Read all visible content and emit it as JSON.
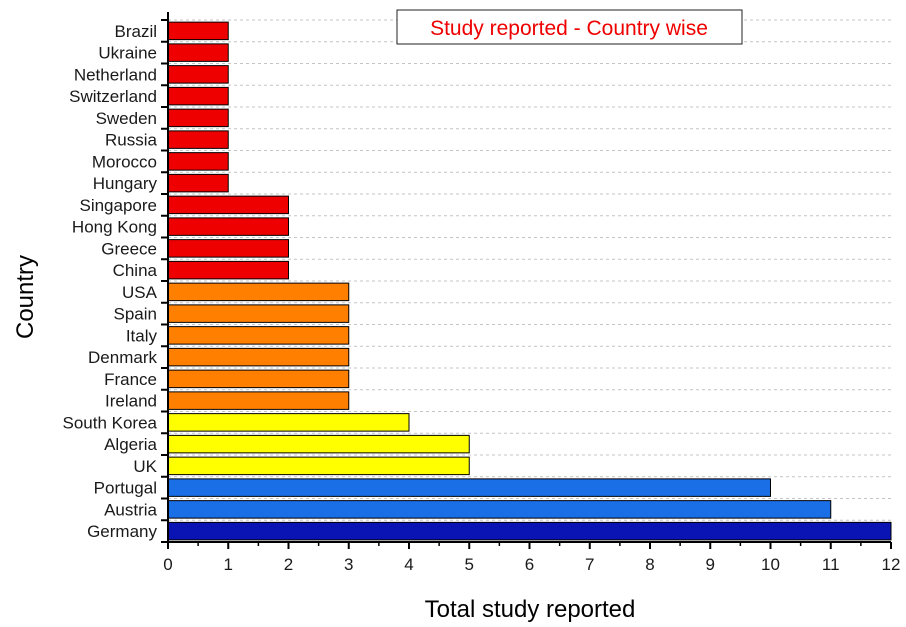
{
  "chart_data": {
    "type": "bar",
    "orientation": "horizontal",
    "title": "Study reported - Country wise",
    "xlabel": "Total study reported",
    "ylabel": "Country",
    "xlim": [
      0,
      12
    ],
    "xticks": [
      0,
      1,
      2,
      3,
      4,
      5,
      6,
      7,
      8,
      9,
      10,
      11,
      12
    ],
    "grid": "horizontal dashed",
    "legend_placement": "top-center",
    "categories": [
      "Brazil",
      "Ukraine",
      "Netherland",
      "Switzerland",
      "Sweden",
      "Russia",
      "Morocco",
      "Hungary",
      "Singapore",
      "Hong Kong",
      "Greece",
      "China",
      "USA",
      "Spain",
      "Italy",
      "Denmark",
      "France",
      "Ireland",
      "South Korea",
      "Algeria",
      "UK",
      "Portugal",
      "Austria",
      "Germany"
    ],
    "values": [
      1,
      1,
      1,
      1,
      1,
      1,
      1,
      1,
      2,
      2,
      2,
      2,
      3,
      3,
      3,
      3,
      3,
      3,
      4,
      5,
      5,
      10,
      11,
      12
    ],
    "bar_colors": [
      "#ee0000",
      "#ee0000",
      "#ee0000",
      "#ee0000",
      "#ee0000",
      "#ee0000",
      "#ee0000",
      "#ee0000",
      "#ee0000",
      "#ee0000",
      "#ee0000",
      "#ee0000",
      "#ff8000",
      "#ff8000",
      "#ff8000",
      "#ff8000",
      "#ff8000",
      "#ff8000",
      "#ffff00",
      "#ffff00",
      "#ffff00",
      "#1a6ee6",
      "#1a6ee6",
      "#0a14b4"
    ],
    "title_color": "#ee0000"
  }
}
